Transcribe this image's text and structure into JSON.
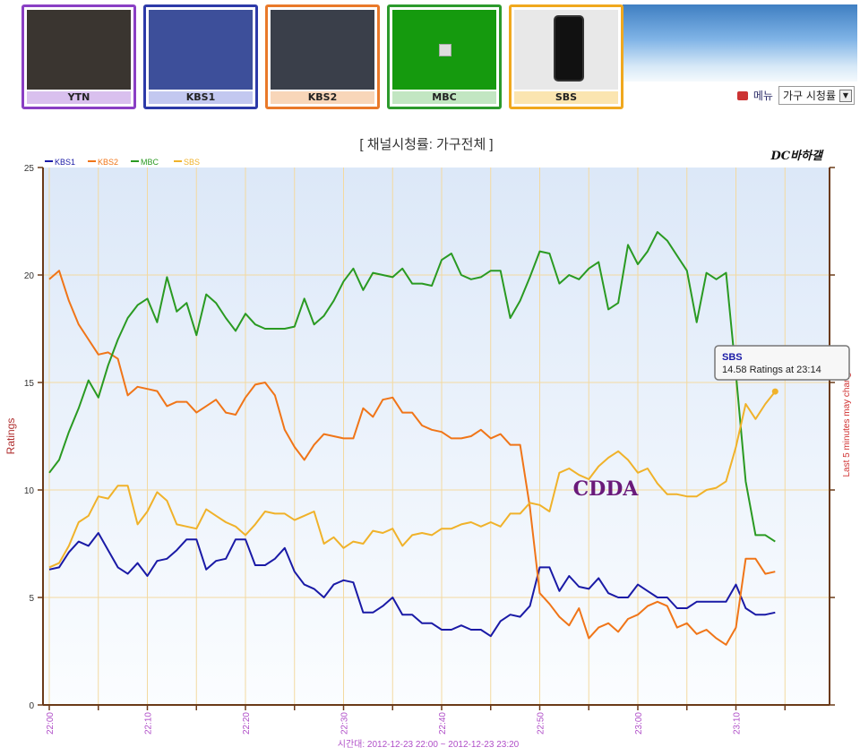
{
  "channels": [
    {
      "label": "YTN",
      "border": "#8a3fc4",
      "label_bg": "#d9c0ee",
      "screen": "#3a3530"
    },
    {
      "label": "KBS1",
      "border": "#2d3aa8",
      "label_bg": "#c3c8f0",
      "screen": "#3d4f9a"
    },
    {
      "label": "KBS2",
      "border": "#e9792a",
      "label_bg": "#f8d6b9",
      "screen": "#3a3f4a"
    },
    {
      "label": "MBC",
      "border": "#2c9a2c",
      "label_bg": "#c2e6c2",
      "screen": "#159a0e"
    },
    {
      "label": "SBS",
      "border": "#f0a81e",
      "label_bg": "#fbe5b0",
      "screen": "#e8e8e8"
    }
  ],
  "controls": {
    "menu_label": "메뉴",
    "select_value": "가구 시청률"
  },
  "chart_data": {
    "type": "line",
    "title": "[ 채널시청률: 가구전체 ]",
    "watermark": "DC바하갤",
    "ylabel": "Ratings",
    "right_label": "Last 5 minutes may change.",
    "xlabel": "시간대: 2012-12-23 22:00 ~ 2012-12-23 23:20",
    "ylim": [
      0,
      25
    ],
    "yticks": [
      "0",
      "5",
      "10",
      "15",
      "20",
      "25"
    ],
    "xlim": [
      0,
      80
    ],
    "xticks": [
      "22:00",
      "22:10",
      "22:20",
      "22:30",
      "22:40",
      "22:50",
      "23:00",
      "23:10"
    ],
    "grid": true,
    "legend": "top-left",
    "annotation": "CDDA",
    "tooltip": {
      "series": "SBS",
      "text": "14.58 Ratings at 23:14"
    },
    "series": [
      {
        "name": "KBS1",
        "color": "#1a1aa6",
        "values": [
          6.3,
          6.4,
          7.1,
          7.6,
          7.4,
          8.0,
          7.2,
          6.4,
          6.1,
          6.6,
          6.0,
          6.7,
          6.8,
          7.2,
          7.7,
          7.7,
          6.3,
          6.7,
          6.8,
          7.7,
          7.7,
          6.5,
          6.5,
          6.8,
          7.3,
          6.2,
          5.6,
          5.4,
          5.0,
          5.6,
          5.8,
          5.7,
          4.3,
          4.3,
          4.6,
          5.0,
          4.2,
          4.2,
          3.8,
          3.8,
          3.5,
          3.5,
          3.7,
          3.5,
          3.5,
          3.2,
          3.9,
          4.2,
          4.1,
          4.6,
          6.4,
          6.4,
          5.3,
          6.0,
          5.5,
          5.4,
          5.9,
          5.2,
          5.0,
          5.0,
          5.6,
          5.3,
          5.0,
          5.0,
          4.5,
          4.5,
          4.8,
          4.8,
          4.8,
          4.8,
          5.6,
          4.5,
          4.2,
          4.2,
          4.3
        ]
      },
      {
        "name": "KBS2",
        "color": "#f07518",
        "values": [
          19.8,
          20.2,
          18.8,
          17.7,
          17.0,
          16.3,
          16.4,
          16.1,
          14.4,
          14.8,
          14.7,
          14.6,
          13.9,
          14.1,
          14.1,
          13.6,
          13.9,
          14.2,
          13.6,
          13.5,
          14.3,
          14.9,
          15.0,
          14.4,
          12.8,
          12.0,
          11.4,
          12.1,
          12.6,
          12.5,
          12.4,
          12.4,
          13.8,
          13.4,
          14.2,
          14.3,
          13.6,
          13.6,
          13.0,
          12.8,
          12.7,
          12.4,
          12.4,
          12.5,
          12.8,
          12.4,
          12.6,
          12.1,
          12.1,
          9.2,
          5.2,
          4.7,
          4.1,
          3.7,
          4.5,
          3.1,
          3.6,
          3.8,
          3.4,
          4.0,
          4.2,
          4.6,
          4.8,
          4.6,
          3.6,
          3.8,
          3.3,
          3.5,
          3.1,
          2.8,
          3.6,
          6.8,
          6.8,
          6.1,
          6.2
        ]
      },
      {
        "name": "MBC",
        "color": "#2a9a22",
        "values": [
          10.8,
          11.4,
          12.7,
          13.8,
          15.1,
          14.3,
          15.8,
          17.0,
          18.0,
          18.6,
          18.9,
          17.8,
          19.9,
          18.3,
          18.7,
          17.2,
          19.1,
          18.7,
          18.0,
          17.4,
          18.2,
          17.7,
          17.5,
          17.5,
          17.5,
          17.6,
          18.9,
          17.7,
          18.1,
          18.8,
          19.7,
          20.3,
          19.3,
          20.1,
          20.0,
          19.9,
          20.3,
          19.6,
          19.6,
          19.5,
          20.7,
          21.0,
          20.0,
          19.8,
          19.9,
          20.2,
          20.2,
          18.0,
          18.8,
          19.9,
          21.1,
          21.0,
          19.6,
          20.0,
          19.8,
          20.3,
          20.6,
          18.4,
          18.7,
          21.4,
          20.5,
          21.1,
          22.0,
          21.6,
          20.9,
          20.2,
          17.8,
          20.1,
          19.8,
          20.1,
          15.4,
          10.4,
          7.9,
          7.9,
          7.6
        ]
      },
      {
        "name": "SBS",
        "color": "#f0b22a",
        "values": [
          6.4,
          6.6,
          7.4,
          8.5,
          8.8,
          9.7,
          9.6,
          10.2,
          10.2,
          8.4,
          9.0,
          9.9,
          9.5,
          8.4,
          8.3,
          8.2,
          9.1,
          8.8,
          8.5,
          8.3,
          7.9,
          8.4,
          9.0,
          8.9,
          8.9,
          8.6,
          8.8,
          9.0,
          7.5,
          7.8,
          7.3,
          7.6,
          7.5,
          8.1,
          8.0,
          8.2,
          7.4,
          7.9,
          8.0,
          7.9,
          8.2,
          8.2,
          8.4,
          8.5,
          8.3,
          8.5,
          8.3,
          8.9,
          8.9,
          9.4,
          9.3,
          9.0,
          10.8,
          11.0,
          10.7,
          10.5,
          11.1,
          11.5,
          11.8,
          11.4,
          10.8,
          11.0,
          10.3,
          9.8,
          9.8,
          9.7,
          9.7,
          10.0,
          10.1,
          10.4,
          12.0,
          14.0,
          13.3,
          14.0,
          14.58
        ]
      }
    ]
  }
}
